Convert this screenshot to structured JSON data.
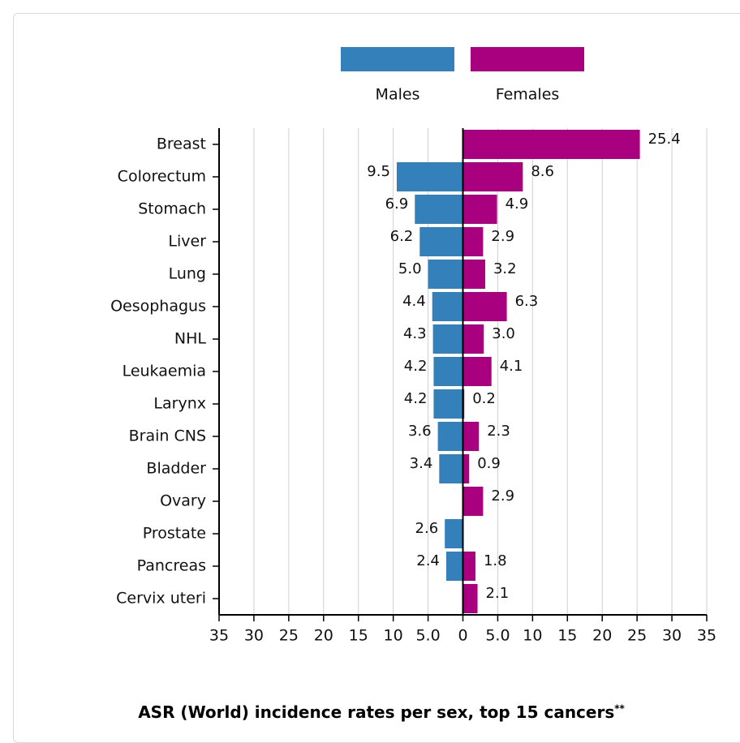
{
  "chart_data": {
    "type": "bar",
    "orientation": "horizontal",
    "layout": "population-pyramid",
    "title": "ASR (World) incidence rates per sex, top 15 cancers",
    "title_footnote_marker": "**",
    "categories": [
      "Breast",
      "Colorectum",
      "Stomach",
      "Liver",
      "Lung",
      "Oesophagus",
      "NHL",
      "Leukaemia",
      "Larynx",
      "Brain CNS",
      "Bladder",
      "Ovary",
      "Prostate",
      "Pancreas",
      "Cervix uteri"
    ],
    "series": [
      {
        "name": "Males",
        "color": "#3380bb",
        "side": "left",
        "values": [
          null,
          9.5,
          6.9,
          6.2,
          5.0,
          4.4,
          4.3,
          4.2,
          4.2,
          3.6,
          3.4,
          null,
          2.6,
          2.4,
          null
        ],
        "labels": [
          "",
          "9.5",
          "6.9",
          "6.2",
          "5.0",
          "4.4",
          "4.3",
          "4.2",
          "4.2",
          "3.6",
          "3.4",
          "",
          "2.6",
          "2.4",
          ""
        ]
      },
      {
        "name": "Females",
        "color": "#a8007f",
        "side": "right",
        "values": [
          25.4,
          8.6,
          4.9,
          2.9,
          3.2,
          6.3,
          3.0,
          4.1,
          0.2,
          2.3,
          0.9,
          2.9,
          null,
          1.8,
          2.1
        ],
        "labels": [
          "25.4",
          "8.6",
          "4.9",
          "2.9",
          "3.2",
          "6.3",
          "3.0",
          "4.1",
          "0.2",
          "2.3",
          "0.9",
          "2.9",
          "",
          "1.8",
          "2.1"
        ]
      }
    ],
    "xlim": [
      -35,
      35
    ],
    "x_tick_values": [
      -35,
      -30,
      -25,
      -20,
      -15,
      -10,
      -5,
      0,
      5,
      10,
      15,
      20,
      25,
      30,
      35
    ],
    "x_tick_labels": [
      "35",
      "30",
      "25",
      "20",
      "15",
      "10",
      "5.0",
      "0",
      "5.0",
      "10",
      "15",
      "20",
      "25",
      "30",
      "35"
    ],
    "grid": true,
    "legend_position": "top-center"
  }
}
